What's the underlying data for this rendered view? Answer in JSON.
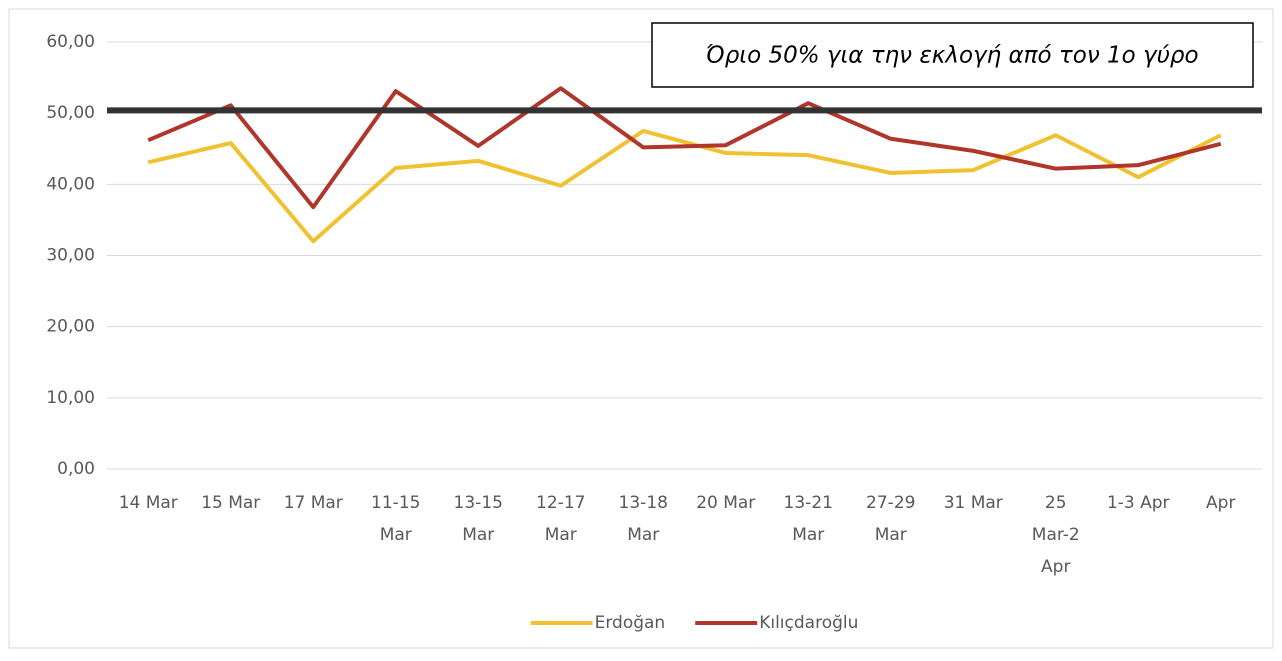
{
  "chart_data": {
    "type": "line",
    "categories": [
      "14 Mar",
      "15 Mar",
      "17 Mar",
      "11-15 Mar",
      "13-15 Mar",
      "12-17 Mar",
      "13-18 Mar",
      "20 Mar",
      "13-21 Mar",
      "27-29 Mar",
      "31 Mar",
      "25 Mar-2 Apr",
      "1-3 Apr",
      "Apr"
    ],
    "series": [
      {
        "name": "Erdoğan",
        "color": "#f0c232",
        "values": [
          43.1,
          45.8,
          32.0,
          42.3,
          43.3,
          39.8,
          47.5,
          44.4,
          44.1,
          41.6,
          42.0,
          46.9,
          41.0,
          46.9
        ]
      },
      {
        "name": "Kılıçdaroğlu",
        "color": "#b0352a",
        "values": [
          46.2,
          51.1,
          36.8,
          53.1,
          45.4,
          53.5,
          45.2,
          45.5,
          51.4,
          46.4,
          44.7,
          42.2,
          42.7,
          45.7
        ]
      }
    ],
    "threshold": {
      "value": 50.4,
      "color": "#333333",
      "annotation": "Όριο 50% για την εκλογή από τον 1ο γύρο"
    },
    "ylim": [
      0,
      60
    ],
    "yticks": [
      {
        "value": 0,
        "label": "0,00"
      },
      {
        "value": 10,
        "label": "10,00"
      },
      {
        "value": 20,
        "label": "20,00"
      },
      {
        "value": 30,
        "label": "30,00"
      },
      {
        "value": 40,
        "label": "40,00"
      },
      {
        "value": 50,
        "label": "50,00"
      },
      {
        "value": 60,
        "label": "60,00"
      }
    ],
    "grid": true,
    "legend": "bottom"
  }
}
